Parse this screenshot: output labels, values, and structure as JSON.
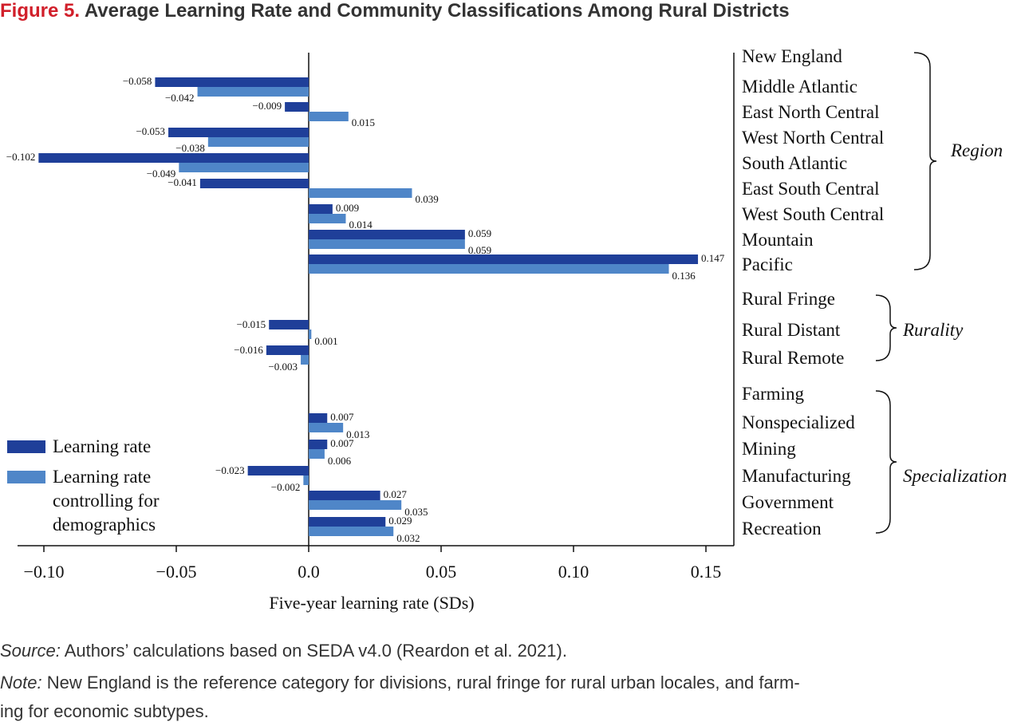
{
  "figure": {
    "label": "Figure 5.",
    "title": "Average Learning Rate and Community Classifications Among Rural Districts"
  },
  "colors": {
    "learning_rate": "#1f3f99",
    "controlled": "#4f86c8"
  },
  "chart_data": {
    "type": "bar",
    "orientation": "horizontal",
    "xlabel": "Five-year learning rate (SDs)",
    "xlim": [
      -0.1,
      0.15
    ],
    "xticks": [
      -0.1,
      -0.05,
      0.0,
      0.05,
      0.1,
      0.15
    ],
    "xtick_labels": [
      "−0.10",
      "−0.05",
      "0.0",
      "0.05",
      "0.10",
      "0.15"
    ],
    "legend_position": "bottom-left",
    "series": [
      {
        "name": "Learning rate",
        "color": "#1f3f99"
      },
      {
        "name": "Learning rate controlling for demographics",
        "color": "#4f86c8"
      }
    ],
    "categories": [
      {
        "label": "New England",
        "group": "Region",
        "learning_rate": null,
        "controlled": null
      },
      {
        "label": "Middle Atlantic",
        "group": "Region",
        "learning_rate": -0.058,
        "controlled": -0.042
      },
      {
        "label": "East North Central",
        "group": "Region",
        "learning_rate": -0.009,
        "controlled": 0.015
      },
      {
        "label": "West North Central",
        "group": "Region",
        "learning_rate": -0.053,
        "controlled": -0.038
      },
      {
        "label": "South Atlantic",
        "group": "Region",
        "learning_rate": -0.102,
        "controlled": -0.049
      },
      {
        "label": "East South Central",
        "group": "Region",
        "learning_rate": -0.041,
        "controlled": 0.039
      },
      {
        "label": "West South Central",
        "group": "Region",
        "learning_rate": 0.009,
        "controlled": 0.014
      },
      {
        "label": "Mountain",
        "group": "Region",
        "learning_rate": 0.059,
        "controlled": 0.059
      },
      {
        "label": "Pacific",
        "group": "Region",
        "learning_rate": 0.147,
        "controlled": 0.136
      },
      {
        "label": "Rural Fringe",
        "group": "Rurality",
        "learning_rate": null,
        "controlled": null
      },
      {
        "label": "Rural Distant",
        "group": "Rurality",
        "learning_rate": -0.015,
        "controlled": 0.001
      },
      {
        "label": "Rural Remote",
        "group": "Rurality",
        "learning_rate": -0.016,
        "controlled": -0.003
      },
      {
        "label": "Farming",
        "group": "Specialization",
        "learning_rate": null,
        "controlled": null
      },
      {
        "label": "Nonspecialized",
        "group": "Specialization",
        "learning_rate": 0.007,
        "controlled": 0.013
      },
      {
        "label": "Mining",
        "group": "Specialization",
        "learning_rate": 0.007,
        "controlled": 0.006
      },
      {
        "label": "Manufacturing",
        "group": "Specialization",
        "learning_rate": -0.023,
        "controlled": -0.002
      },
      {
        "label": "Government",
        "group": "Specialization",
        "learning_rate": 0.027,
        "controlled": 0.035
      },
      {
        "label": "Recreation",
        "group": "Specialization",
        "learning_rate": 0.029,
        "controlled": 0.032
      }
    ],
    "groups": [
      "Region",
      "Rurality",
      "Specialization"
    ]
  },
  "legend": {
    "learning_rate": "Learning rate",
    "controlled_lines": [
      "Learning rate",
      "controlling for",
      "demographics"
    ]
  },
  "source": {
    "label": "Source:",
    "text": " Authors’ calculations based on SEDA v4.0 (Reardon et al. 2021)."
  },
  "note": {
    "label": "Note:",
    "line1": " New England is the reference category for divisions, rural fringe for rural urban locales, and farm-",
    "line2": "ing for economic subtypes."
  }
}
